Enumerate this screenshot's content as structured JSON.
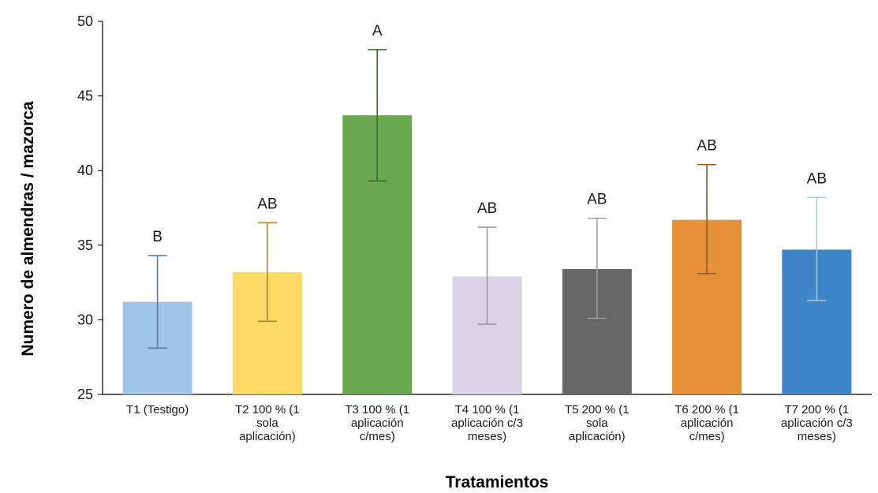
{
  "chart_data": {
    "type": "bar",
    "xlabel": "Tratamientos",
    "ylabel": "Numero de almendras / mazorca",
    "ylim": [
      25,
      50
    ],
    "yticks": [
      25,
      30,
      35,
      40,
      45,
      50
    ],
    "grid": false,
    "legend": "none",
    "categories": [
      [
        "T1 (Testigo)"
      ],
      [
        "T2 100 % (1",
        "sola",
        "aplicación)"
      ],
      [
        "T3 100 % (1",
        "aplicación",
        "c/mes)"
      ],
      [
        "T4 100 % (1",
        "aplicación c/3",
        "meses)"
      ],
      [
        "T5 200 % (1",
        "sola",
        "aplicación)"
      ],
      [
        "T6 200 % (1",
        "aplicación",
        "c/mes)"
      ],
      [
        "T7 200 % (1",
        "aplicación c/3",
        "meses)"
      ]
    ],
    "values": [
      31.2,
      33.2,
      43.7,
      32.9,
      33.4,
      36.7,
      34.7
    ],
    "error_low": [
      28.1,
      29.9,
      39.3,
      29.7,
      30.1,
      33.1,
      31.3
    ],
    "error_high": [
      34.3,
      36.5,
      48.1,
      36.2,
      36.8,
      40.4,
      38.2
    ],
    "significance": [
      "B",
      "AB",
      "A",
      "AB",
      "AB",
      "AB",
      "AB"
    ],
    "colors": [
      "#9fc5e8",
      "#ffd966",
      "#6aa84f",
      "#d9d2e9",
      "#666666",
      "#e69138",
      "#3d85c6"
    ],
    "error_colors": [
      "#5f7c96",
      "#a08a3e",
      "#3d6b2c",
      "#9a94aa",
      "#a0a0a0",
      "#8c5a22",
      "#a9c8e6"
    ]
  }
}
